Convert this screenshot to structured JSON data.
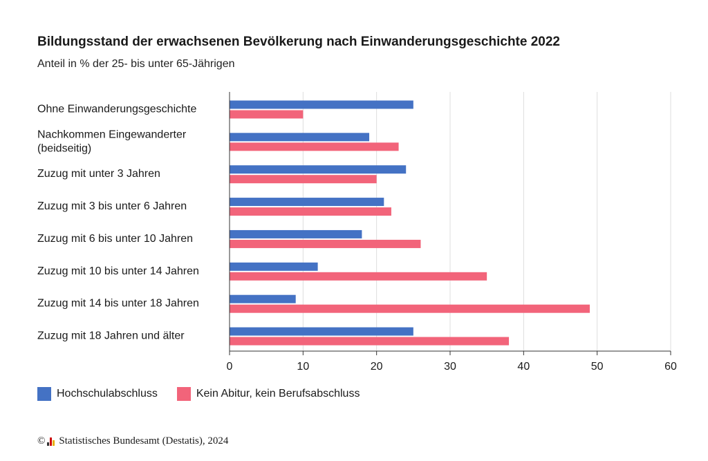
{
  "title": "Bildungsstand der erwachsenen Bevölkerung nach Einwanderungsgeschichte 2022",
  "subtitle": "Anteil in % der 25- bis unter 65-Jährigen",
  "footer": {
    "copyright_symbol": "©",
    "icon": "destatis-logo-icon",
    "text": "Statistisches Bundesamt (Destatis), 2024"
  },
  "colors": {
    "hochschul": "#4472c4",
    "kein_abitur": "#f2647a",
    "grid": "#dddddd",
    "axis": "#333333"
  },
  "chart_data": {
    "type": "bar",
    "orientation": "horizontal",
    "categories": [
      [
        "Ohne Einwanderungsgeschichte"
      ],
      [
        "Nachkommen Eingewanderter",
        "(beidseitig)"
      ],
      [
        "Zuzug mit unter 3 Jahren"
      ],
      [
        "Zuzug mit 3 bis unter 6 Jahren"
      ],
      [
        "Zuzug mit 6 bis unter 10 Jahren"
      ],
      [
        "Zuzug mit 10 bis unter 14 Jahren"
      ],
      [
        "Zuzug mit 14 bis unter 18 Jahren"
      ],
      [
        "Zuzug mit 18 Jahren und älter"
      ]
    ],
    "series": [
      {
        "name": "Hochschulabschluss",
        "values": [
          25,
          19,
          24,
          21,
          18,
          12,
          9,
          25
        ]
      },
      {
        "name": "Kein Abitur, kein Berufsabschluss",
        "values": [
          10,
          23,
          20,
          22,
          26,
          35,
          49,
          38
        ]
      }
    ],
    "xlim": [
      0,
      60
    ],
    "xticks": [
      0,
      10,
      20,
      30,
      40,
      50,
      60
    ],
    "grid": true,
    "legend_position": "bottom-left"
  }
}
